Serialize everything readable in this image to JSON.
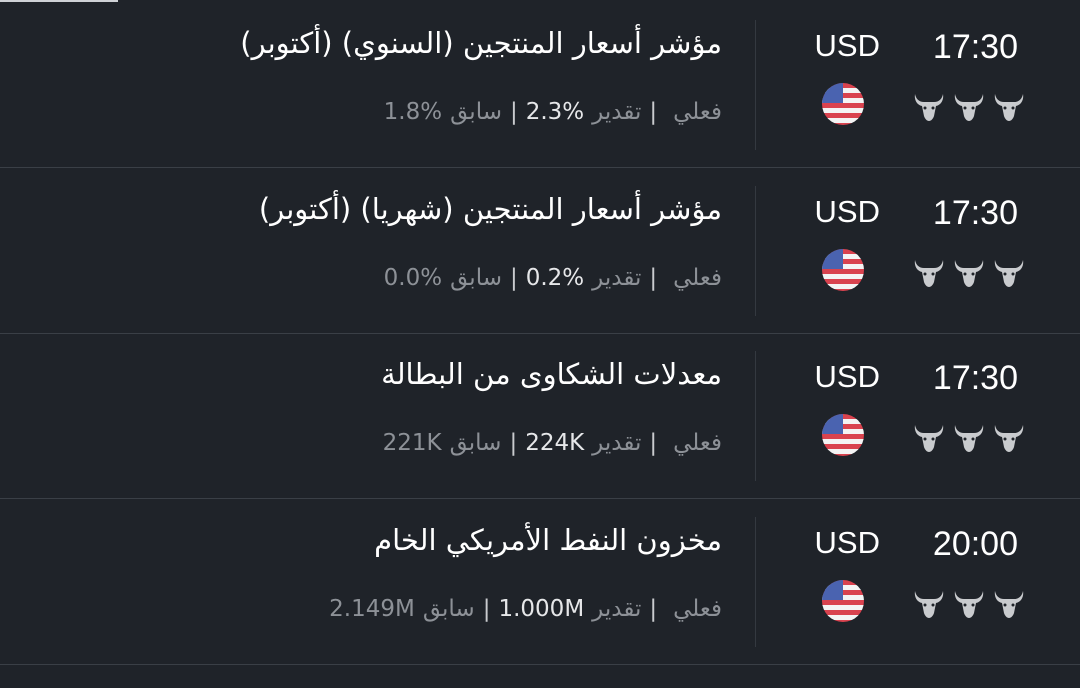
{
  "labels": {
    "actual": "فعلي",
    "forecast": "تقدير",
    "previous": "سابق",
    "separator": "|"
  },
  "events": [
    {
      "title": "مؤشر أسعار المنتجين (السنوي) (أكتوبر)",
      "actual": "",
      "forecast": "2.3%",
      "previous": "1.8%",
      "currency": "USD",
      "time": "17:30",
      "flag": "us-flag-icon",
      "importance": 3
    },
    {
      "title": "مؤشر أسعار المنتجين (شهريا) (أكتوبر)",
      "actual": "",
      "forecast": "0.2%",
      "previous": "0.0%",
      "currency": "USD",
      "time": "17:30",
      "flag": "us-flag-icon",
      "importance": 3
    },
    {
      "title": "معدلات الشكاوى من البطالة",
      "actual": "",
      "forecast": "224K",
      "previous": "221K",
      "currency": "USD",
      "time": "17:30",
      "flag": "us-flag-icon",
      "importance": 3
    },
    {
      "title": "مخزون النفط الأمريكي الخام",
      "actual": "",
      "forecast": "1.000M",
      "previous": "2.149M",
      "currency": "USD",
      "time": "20:00",
      "flag": "us-flag-icon",
      "importance": 3
    }
  ],
  "colors": {
    "background": "#1f2329",
    "muted": "#8d9197",
    "bull": "#c9cbce"
  }
}
